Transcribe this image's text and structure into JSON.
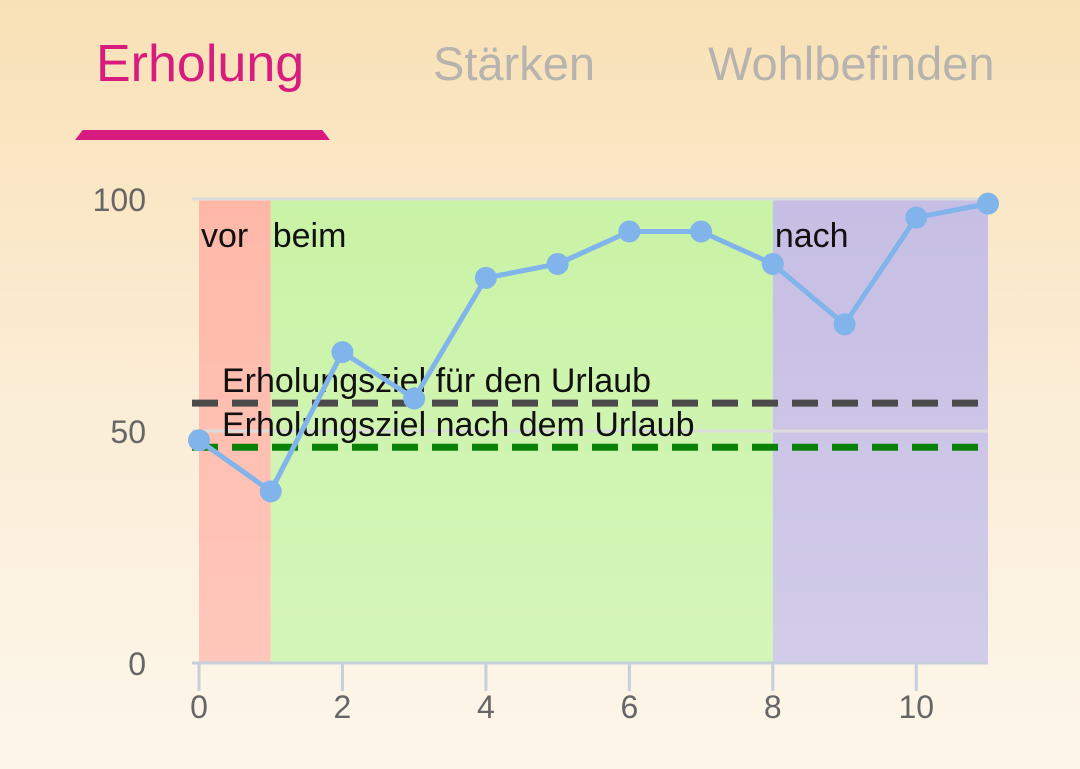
{
  "tabs": [
    {
      "label": "Erholung",
      "active": true
    },
    {
      "label": "Stärken",
      "active": false
    },
    {
      "label": "Wohlbefinden",
      "active": false
    }
  ],
  "colors": {
    "accent": "#d81b7f",
    "inactive_tab": "#b7b3ae",
    "series_line": "#80b4ea",
    "goal_during": "#4b4b4b",
    "goal_after": "#0a820a",
    "phase_vor": "#ffb8a8",
    "phase_beim": "#c9f3a6",
    "phase_nach": "#c6bee4"
  },
  "chart_data": {
    "type": "line",
    "x": [
      0,
      1,
      2,
      3,
      4,
      5,
      6,
      7,
      8,
      9,
      10,
      11
    ],
    "series": [
      {
        "values": [
          48,
          37,
          67,
          57,
          83,
          86,
          93,
          93,
          86,
          73,
          96,
          99
        ]
      }
    ],
    "xlim": [
      0,
      11
    ],
    "ylim": [
      0,
      100
    ],
    "x_ticks": [
      0,
      2,
      4,
      6,
      8,
      10
    ],
    "y_ticks": [
      0,
      50,
      100
    ],
    "grid": "horizontal",
    "phases": [
      {
        "label": "vor",
        "x_start": 0,
        "x_end": 1
      },
      {
        "label": "beim",
        "x_start": 1,
        "x_end": 8
      },
      {
        "label": "nach",
        "x_start": 8,
        "x_end": 11
      }
    ],
    "reference_lines": [
      {
        "label": "Erholungsziel für den Urlaub",
        "y": 56
      },
      {
        "label": "Erholungsziel nach dem Urlaub",
        "y": 46.5
      }
    ]
  }
}
